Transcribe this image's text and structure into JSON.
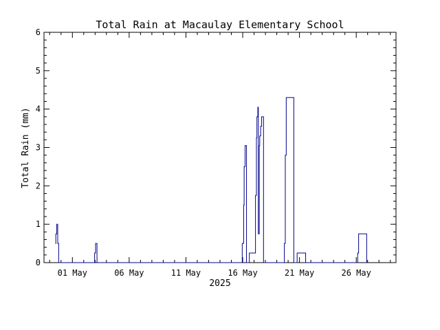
{
  "chart_data": {
    "type": "line",
    "title": "Total Rain at Macaulay Elementary School",
    "xlabel": "2025",
    "ylabel": "Total Rain (mm)",
    "ylim": [
      0,
      6
    ],
    "xlim": [
      "2025-04-28T12:00",
      "2025-05-29T12:00"
    ],
    "y_ticks": [
      "0",
      "1",
      "2",
      "3",
      "4",
      "5",
      "6"
    ],
    "x_ticks": [
      {
        "date": "2025-05-01",
        "label": "01 May"
      },
      {
        "date": "2025-05-06",
        "label": "06 May"
      },
      {
        "date": "2025-05-11",
        "label": "11 May"
      },
      {
        "date": "2025-05-16",
        "label": "16 May"
      },
      {
        "date": "2025-05-21",
        "label": "21 May"
      },
      {
        "date": "2025-05-26",
        "label": "26 May"
      }
    ],
    "grid": false,
    "legend": "none",
    "line_color": "#00008b",
    "series": [
      {
        "x": [
          "2025-04-29T12:00",
          "2025-04-29T13:00",
          "2025-04-29T15:00",
          "2025-04-29T17:00",
          "2025-04-29T19:00",
          "2025-04-29T21:00",
          "2025-05-02T23:00",
          "2025-05-03T01:00",
          "2025-05-03T04:00",
          "2025-05-15T23:00",
          "2025-05-16T02:00",
          "2025-05-16T03:00",
          "2025-05-16T05:00",
          "2025-05-16T08:00",
          "2025-05-16T14:00",
          "2025-05-17T03:00",
          "2025-05-17T05:00",
          "2025-05-17T06:00",
          "2025-05-17T08:00",
          "2025-05-17T09:00",
          "2025-05-17T11:00",
          "2025-05-17T12:00",
          "2025-05-17T14:00",
          "2025-05-17T16:00",
          "2025-05-17T18:00",
          "2025-05-17T20:00",
          "2025-05-18T10:00",
          "2025-05-19T16:00",
          "2025-05-19T18:00",
          "2025-05-19T20:00",
          "2025-05-20T12:00",
          "2025-05-20T19:00",
          "2025-05-21T13:00",
          "2025-05-26T03:00",
          "2025-05-26T05:00",
          "2025-05-26T22:00"
        ],
        "y": [
          0.5,
          0.75,
          1.0,
          0.5,
          0.0,
          0.0,
          0.25,
          0.5,
          0.0,
          0.5,
          1.5,
          2.5,
          3.05,
          0.0,
          0.25,
          1.75,
          3.25,
          3.8,
          4.05,
          0.75,
          3.05,
          3.3,
          3.55,
          3.8,
          3.8,
          0.0,
          0.0,
          0.5,
          2.8,
          4.3,
          0.0,
          0.25,
          0.0,
          0.25,
          0.75,
          0.0
        ]
      }
    ]
  }
}
